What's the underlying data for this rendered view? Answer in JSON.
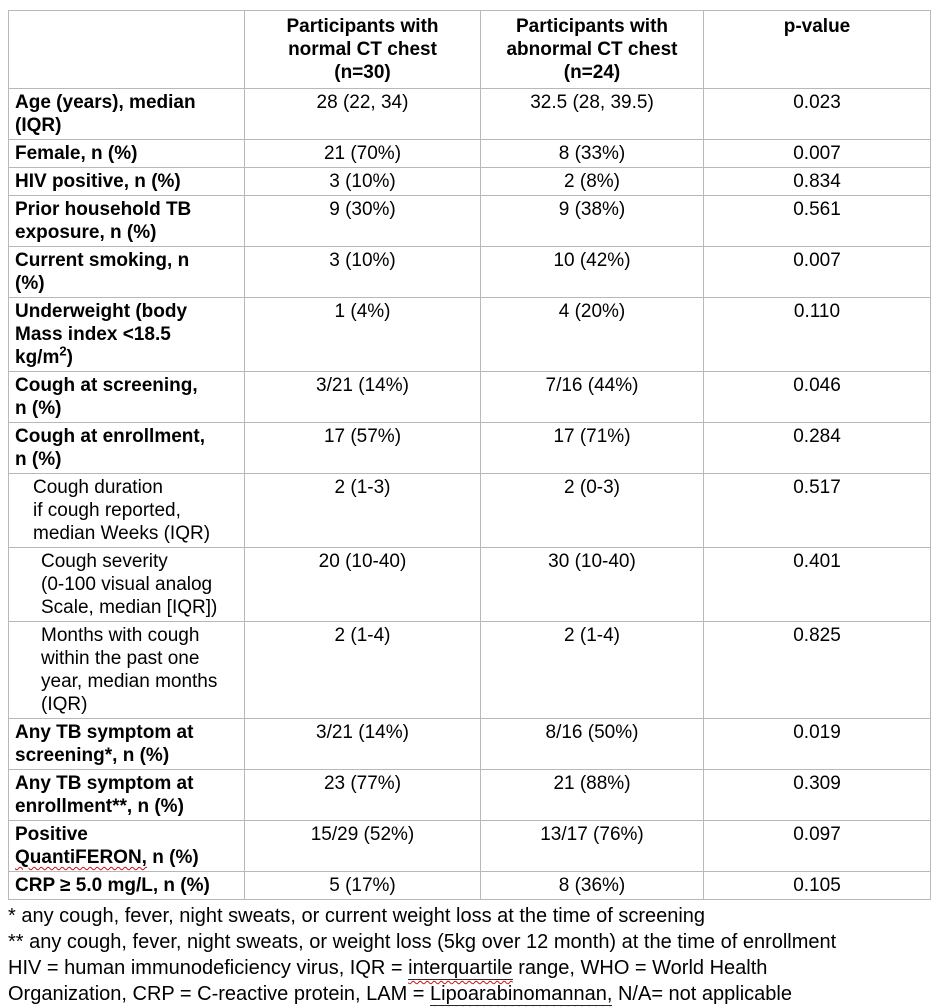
{
  "colors": {
    "border": "#b8b8b8",
    "text": "#000000",
    "spellcheck_squiggle": "#cc1111"
  },
  "table": {
    "columns": [
      "",
      "Participants with\nnormal CT chest\n(n=30)",
      "Participants with\nabnormal CT chest\n(n=24)",
      "p-value"
    ],
    "rows": [
      {
        "label": "Age (years), median\n(IQR)",
        "bold": true,
        "indent": 0,
        "valign": "top",
        "values": [
          "28 (22, 34)",
          "32.5 (28, 39.5)",
          "0.023"
        ]
      },
      {
        "label": "Female, n (%)",
        "bold": true,
        "indent": 0,
        "valign": "top",
        "values": [
          "21 (70%)",
          "8 (33%)",
          "0.007"
        ]
      },
      {
        "label": "HIV positive, n (%)",
        "bold": true,
        "indent": 0,
        "valign": "top",
        "values": [
          "3 (10%)",
          "2 (8%)",
          "0.834"
        ]
      },
      {
        "label": "Prior household TB\nexposure, n (%)",
        "bold": true,
        "indent": 0,
        "valign": "bottom",
        "values": [
          "9 (30%)",
          "9 (38%)",
          "0.561"
        ]
      },
      {
        "label": "Current smoking, n\n(%)",
        "bold": true,
        "indent": 0,
        "valign": "top",
        "values": [
          "3 (10%)",
          "10 (42%)",
          "0.007"
        ]
      },
      {
        "segments": [
          {
            "text": "Underweight (body\nMass index <18.5\nkg/m"
          },
          {
            "text": "2",
            "sup": true
          },
          {
            "text": ")"
          }
        ],
        "bold": true,
        "indent": 0,
        "valign": "top",
        "values": [
          "1 (4%)",
          "4 (20%)",
          "0.110"
        ]
      },
      {
        "label": "Cough at screening,\nn (%)",
        "bold": true,
        "indent": 0,
        "valign": "top",
        "values": [
          "3/21 (14%)",
          "7/16 (44%)",
          "0.046"
        ]
      },
      {
        "label": "Cough at enrollment,\nn (%)",
        "bold": true,
        "indent": 0,
        "valign": "top",
        "values": [
          "17 (57%)",
          "17 (71%)",
          "0.284"
        ]
      },
      {
        "label": "Cough duration\nif cough reported,\nmedian Weeks (IQR)",
        "bold": false,
        "indent": 1,
        "valign": "top",
        "values": [
          "2 (1-3)",
          "2 (0-3)",
          "0.517"
        ]
      },
      {
        "label": "Cough severity\n(0-100 visual analog\nScale, median [IQR])",
        "bold": false,
        "indent": 2,
        "valign": "top",
        "values": [
          "20 (10-40)",
          "30 (10-40)",
          "0.401"
        ]
      },
      {
        "label": "Months with cough\nwithin the past one\nyear, median months\n(IQR)",
        "bold": false,
        "indent": 2,
        "valign": "top",
        "values": [
          "2 (1-4)",
          "2 (1-4)",
          "0.825"
        ]
      },
      {
        "label": "Any TB symptom at\nscreening*, n (%)",
        "bold": true,
        "indent": 0,
        "valign": "top",
        "values": [
          "3/21 (14%)",
          "8/16 (50%)",
          "0.019"
        ]
      },
      {
        "label": "Any TB symptom at\nenrollment**, n (%)",
        "bold": true,
        "indent": 0,
        "valign": "top",
        "values": [
          "23 (77%)",
          "21 (88%)",
          "0.309"
        ]
      },
      {
        "segments": [
          {
            "text": "Positive\n"
          },
          {
            "text": "QuantiFERON,",
            "squiggle": true
          },
          {
            "text": " n (%)"
          }
        ],
        "bold": true,
        "indent": 0,
        "valign": "top",
        "values": [
          "15/29 (52%)",
          "13/17 (76%)",
          "0.097"
        ]
      },
      {
        "label": "CRP ≥ 5.0 mg/L, n (%)",
        "bold": true,
        "indent": 0,
        "valign": "top",
        "values": [
          "5 (17%)",
          "8 (36%)",
          "0.105"
        ]
      }
    ]
  },
  "footnotes": [
    {
      "segments": [
        {
          "text": "* any cough, fever, night sweats, or current weight loss at the time of screening"
        }
      ]
    },
    {
      "segments": [
        {
          "text": "** any cough, fever, night sweats, or weight loss (5kg over 12 month) at the time of enrollment"
        }
      ]
    },
    {
      "segments": [
        {
          "text": "HIV = human immunodeficiency virus, IQR = "
        },
        {
          "text": "interquartile",
          "underline": true,
          "squiggle": true
        },
        {
          "text": " range, WHO = World Health\nOrganization, CRP = C-reactive protein, LAM = "
        },
        {
          "text": "Lipoarabinomannan,",
          "underline": true,
          "squiggle": true
        },
        {
          "text": " N/A= not applicable"
        }
      ]
    }
  ]
}
